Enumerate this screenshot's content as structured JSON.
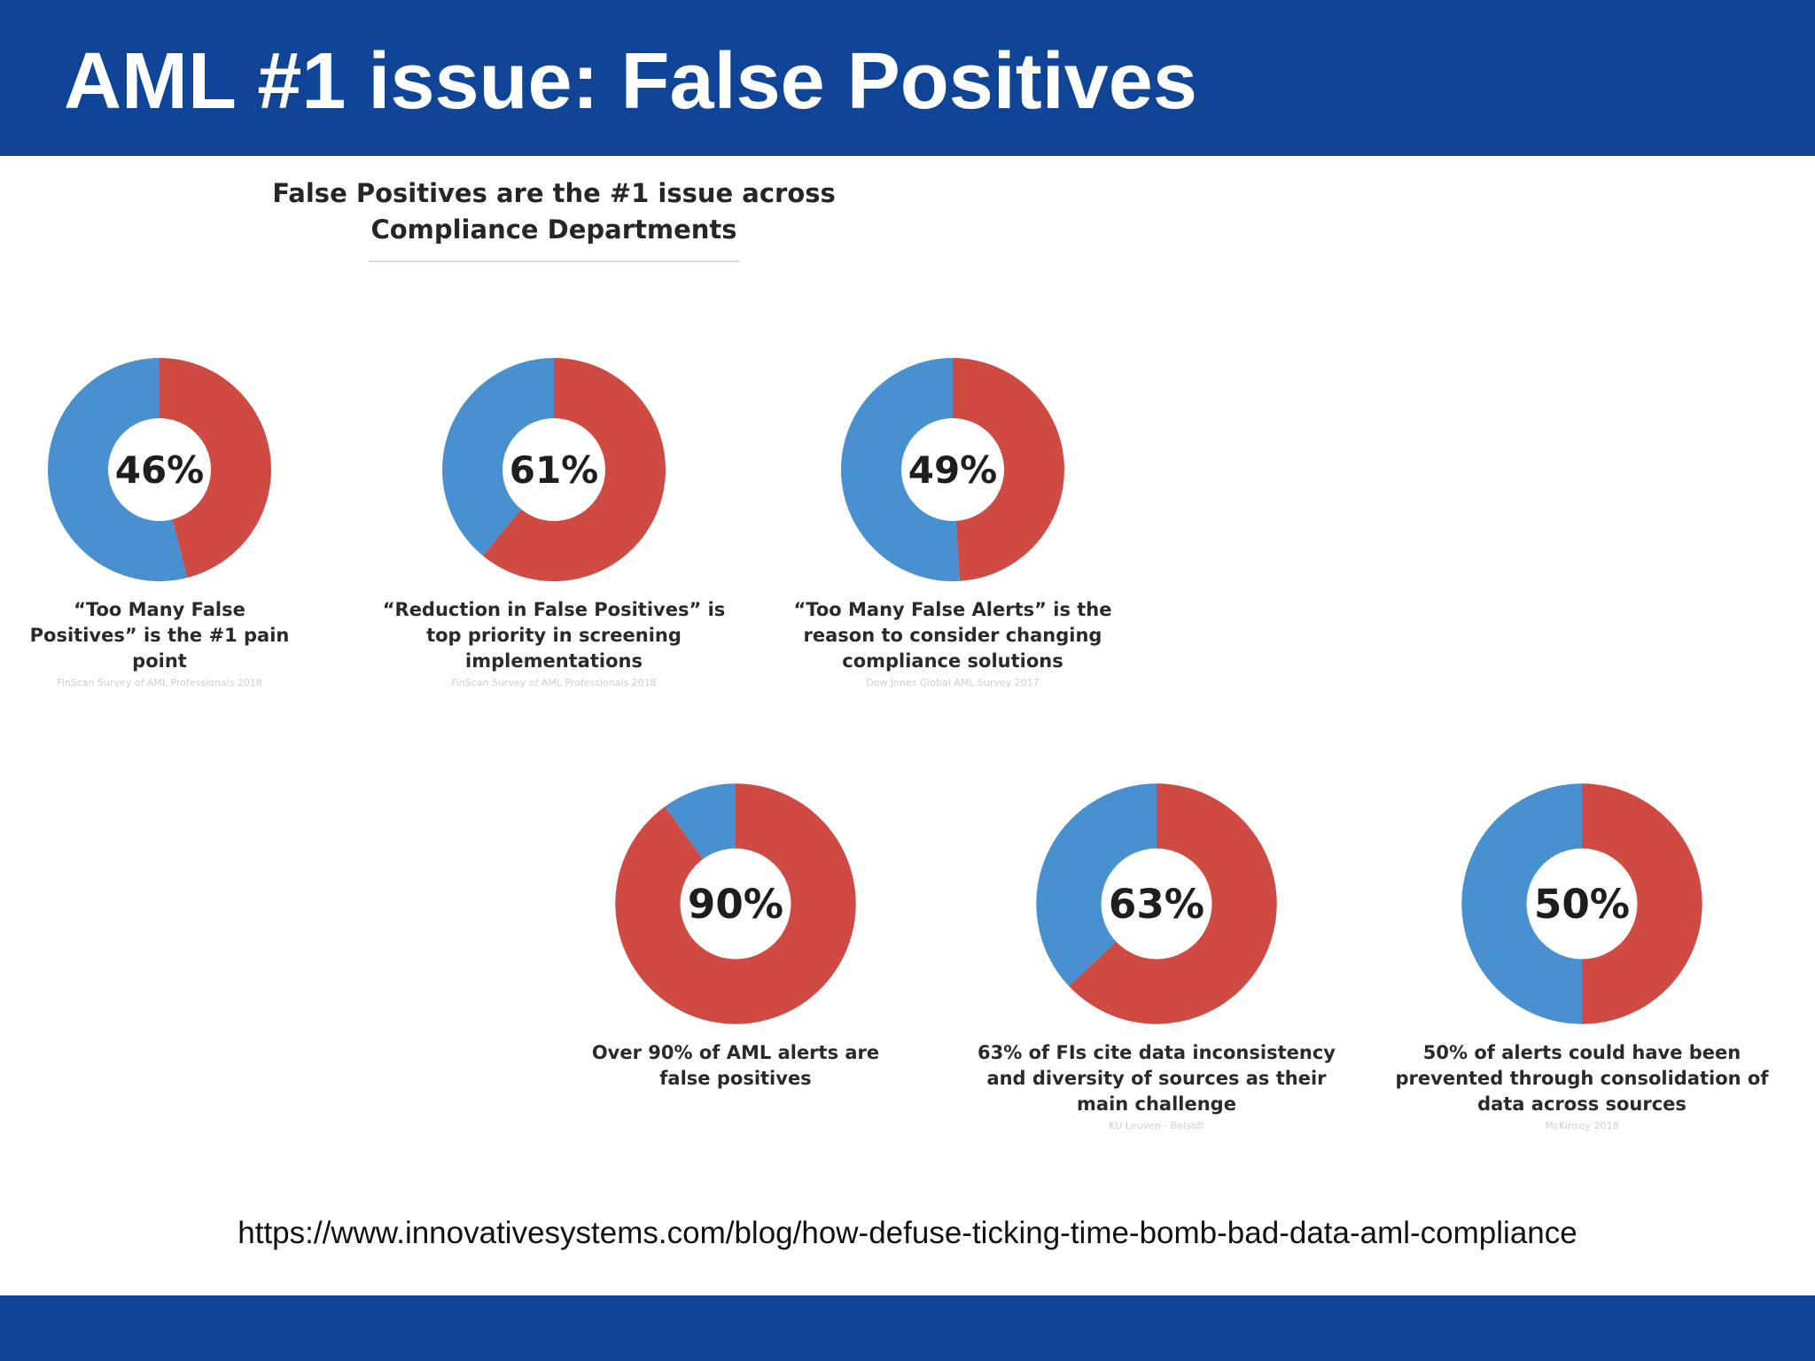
{
  "slide": {
    "title": "AML #1 issue: False Positives",
    "source_url": "https://www.innovativesystems.com/blog/how-defuse-ticking-time-bomb-bad-data-aml-compliance"
  },
  "colors": {
    "header": "#104496",
    "red": "#d04a44",
    "blue": "#4890d0"
  },
  "chart_data": {
    "type": "pie",
    "title": "False Positives are the #1 issue across Compliance Departments",
    "charts": [
      {
        "value": 46,
        "label": "46%",
        "caption": "“Too Many False Positives” is the #1 pain point",
        "source": "FinScan Survey of AML Professionals 2018"
      },
      {
        "value": 61,
        "label": "61%",
        "caption": "“Reduction in False Positives” is top priority in screening implementations",
        "source": "FinScan Survey of AML Professionals 2018"
      },
      {
        "value": 49,
        "label": "49%",
        "caption": "“Too Many False Alerts” is the reason to consider changing compliance solutions",
        "source": "Dow Jones Global AML Survey 2017"
      },
      {
        "value": 90,
        "label": "90%",
        "caption": "Over 90% of AML alerts are false positives",
        "source": ""
      },
      {
        "value": 63,
        "label": "63%",
        "caption": "63% of FIs cite data inconsistency and diversity of sources as their main challenge",
        "source": "KU Leuven - Belsoft"
      },
      {
        "value": 50,
        "label": "50%",
        "caption": "50% of alerts could have been prevented through consolidation of data across sources",
        "source": "McKinsey 2018"
      }
    ]
  }
}
